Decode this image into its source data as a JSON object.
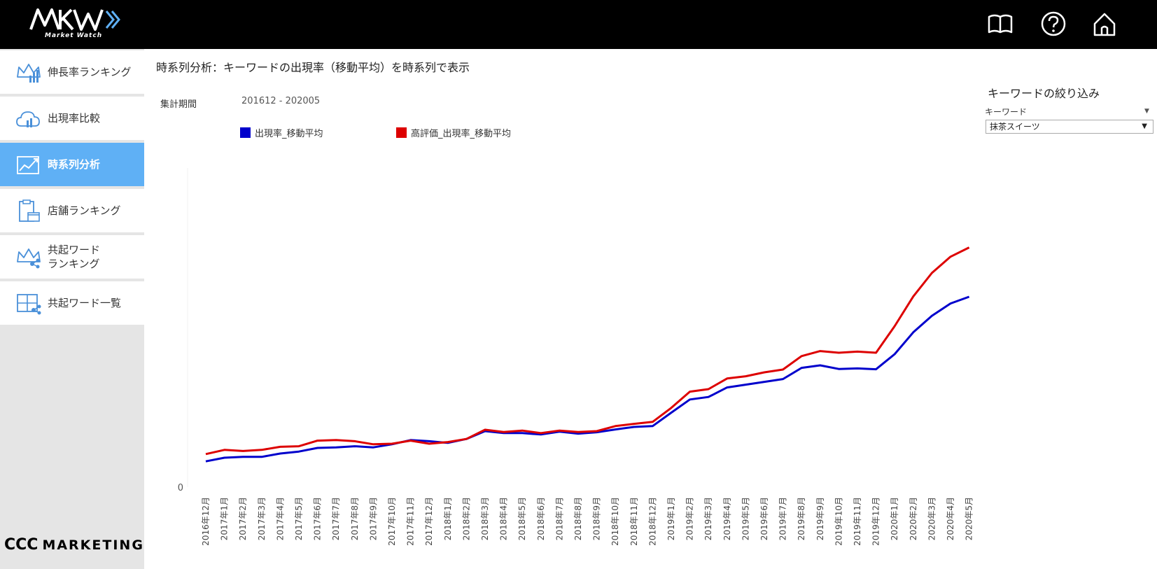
{
  "header": {
    "logo_sub": "Market Watch",
    "icons": [
      "book-icon",
      "help-icon",
      "home-icon"
    ]
  },
  "sidebar": {
    "items": [
      {
        "label": "伸長率ランキング",
        "icon": "crown-chart-icon",
        "active": false
      },
      {
        "label": "出現率比較",
        "icon": "cloud-bars-icon",
        "active": false
      },
      {
        "label": "時系列分析",
        "icon": "trend-line-icon",
        "active": true
      },
      {
        "label": "店舗ランキング",
        "icon": "clipboard-store-icon",
        "active": false
      },
      {
        "label": "共起ワード\nランキング",
        "icon": "crown-network-icon",
        "active": false
      },
      {
        "label": "共起ワード一覧",
        "icon": "grid-network-icon",
        "active": false
      }
    ],
    "brand_ccc": "CCC",
    "brand_text": "MARKETING",
    "active_color": "#5fb0f5"
  },
  "main": {
    "title": "時系列分析：キーワードの出現率（移動平均）を時系列で表示",
    "period_label": "集計期間",
    "period_value": "201612 - 202005"
  },
  "filter": {
    "title": "キーワードの絞り込み",
    "field_label": "キーワード",
    "selected_value": "抹茶スイーツ"
  },
  "chart_data": {
    "type": "line",
    "xlabel": "",
    "ylabel": "",
    "y_tick_labels": [
      "0"
    ],
    "ylim": [
      0,
      100
    ],
    "grid": false,
    "legend_position": "top-left",
    "categories": [
      "2016年12月",
      "2017年1月",
      "2017年2月",
      "2017年3月",
      "2017年4月",
      "2017年5月",
      "2017年6月",
      "2017年7月",
      "2017年8月",
      "2017年9月",
      "2017年10月",
      "2017年11月",
      "2017年12月",
      "2018年1月",
      "2018年2月",
      "2018年3月",
      "2018年4月",
      "2018年5月",
      "2018年6月",
      "2018年7月",
      "2018年8月",
      "2018年9月",
      "2018年10月",
      "2018年11月",
      "2018年12月",
      "2019年1月",
      "2019年2月",
      "2019年3月",
      "2019年4月",
      "2019年5月",
      "2019年6月",
      "2019年7月",
      "2019年8月",
      "2019年9月",
      "2019年10月",
      "2019年11月",
      "2019年12月",
      "2020年1月",
      "2020年2月",
      "2020年3月",
      "2020年4月",
      "2020年5月"
    ],
    "series": [
      {
        "name": "出現率_移動平均",
        "color": "#0000cc",
        "values": [
          9.2,
          10.5,
          10.8,
          10.8,
          12.0,
          12.7,
          14.0,
          14.2,
          14.6,
          14.2,
          15.3,
          16.8,
          16.4,
          15.8,
          17.2,
          20.0,
          19.3,
          19.3,
          18.8,
          19.8,
          19.1,
          19.6,
          20.6,
          21.5,
          21.8,
          26.6,
          31.3,
          32.2,
          35.6,
          36.6,
          37.6,
          38.6,
          42.6,
          43.5,
          42.2,
          42.4,
          42.1,
          47.5,
          55.3,
          61.2,
          65.6,
          68.0
        ]
      },
      {
        "name": "高評価_出現率_移動平均",
        "color": "#dd0000",
        "values": [
          11.8,
          13.3,
          12.9,
          13.3,
          14.4,
          14.6,
          16.6,
          16.8,
          16.4,
          15.3,
          15.5,
          16.6,
          15.5,
          16.1,
          17.2,
          20.5,
          19.7,
          20.2,
          19.3,
          20.2,
          19.7,
          20.0,
          21.8,
          22.6,
          23.3,
          28.3,
          34.1,
          35.0,
          38.8,
          39.6,
          41.0,
          42.0,
          46.8,
          48.6,
          48.0,
          48.4,
          48.0,
          57.5,
          68.1,
          76.5,
          82.3,
          85.6
        ]
      }
    ]
  }
}
